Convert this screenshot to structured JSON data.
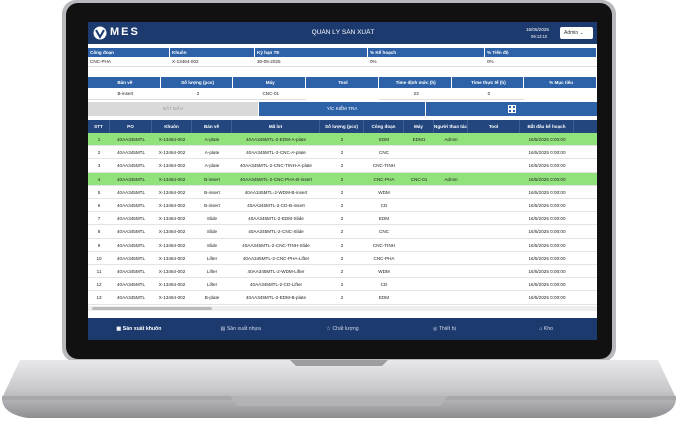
{
  "header": {
    "logo": "MES",
    "title": "QUẢN LÝ SẢN XUẤT",
    "date": "16/05/2025",
    "time": "09:13:10",
    "user": "Admin"
  },
  "info_1": {
    "headers": [
      "Công đoạn",
      "Khuôn",
      "Kỳ hạn TE",
      "% Kế hoạch",
      "% Tiến độ"
    ],
    "values": [
      "CNC-PHA",
      "X-13464-002",
      "30-05-2025",
      "0%",
      "0%"
    ]
  },
  "info_2": {
    "headers": [
      "Bản vẽ",
      "Số lượng (pcs)",
      "Máy",
      "Tool",
      "Time định mức (h)",
      "Time thực tế (h)",
      "% Mục tiêu"
    ],
    "values": [
      "B-insert",
      "2",
      "CNC-01",
      null,
      "23",
      "0",
      null
    ]
  },
  "buttons": [
    "BẮT ĐẦU",
    "Y/C KIỂM TRA"
  ],
  "table": {
    "columns": [
      "STT",
      "PO",
      "Khuôn",
      "Bản vẽ",
      "Mã lot",
      "Số lượng (pcs)",
      "Công đoạn",
      "Máy",
      "Người thao tác",
      "Tool",
      "Bắt đầu kế hoạch"
    ],
    "selected_rows": [
      0,
      3
    ],
    "rows": [
      [
        "1",
        "40AA345MTL",
        "X-13464-002",
        "A-plate",
        "40AA345MTL-2-EDM-A-plate",
        "2",
        "EDM",
        "EDM1",
        "Admin",
        null,
        "16/5/2025 0:00:00"
      ],
      [
        "2",
        "40AA345MTL",
        "X-13464-002",
        "A-plate",
        "40AA345MTL-2-CNC-A-plate",
        "2",
        "CNC",
        null,
        null,
        null,
        "16/5/2025 0:00:00"
      ],
      [
        "3",
        "40AA345MTL",
        "X-13464-002",
        "A-plate",
        "40AA345MTL-2-CNC-TINH-A-plate",
        "2",
        "CNC-TINH",
        null,
        null,
        null,
        "16/5/2025 0:00:00"
      ],
      [
        "4",
        "40AA345MTL",
        "X-13464-002",
        "B-insert",
        "40AA345MTL-2-CNC-PHA-B-insert",
        "2",
        "CNC-PHA",
        "CNC-01",
        "Admin",
        null,
        "16/5/2025 0:00:00"
      ],
      [
        "5",
        "40AA345MTL",
        "X-13464-002",
        "B-insert",
        "40AA345MTL-2-WDM-B-insert",
        "2",
        "WDM",
        null,
        null,
        null,
        "16/5/2025 0:00:00"
      ],
      [
        "6",
        "40AA345MTL",
        "X-13464-002",
        "B-insert",
        "40AA345MTL-2-CD-B-insert",
        "2",
        "CD",
        null,
        null,
        null,
        "16/5/2025 0:00:00"
      ],
      [
        "7",
        "40AA345MTL",
        "X-13464-002",
        "Slide",
        "40AA345MTL-2-EDM-Slide",
        "2",
        "EDM",
        null,
        null,
        null,
        "16/5/2025 0:00:00"
      ],
      [
        "8",
        "40AA345MTL",
        "X-13464-002",
        "Slide",
        "40AA345MTL-2-CNC-Slide",
        "2",
        "CNC",
        null,
        null,
        null,
        "16/5/2025 0:00:00"
      ],
      [
        "9",
        "40AA345MTL",
        "X-13464-002",
        "Slide",
        "40AA345MTL-2-CNC-TINH-Slide",
        "2",
        "CNC-TINH",
        null,
        null,
        null,
        "16/5/2025 0:00:00"
      ],
      [
        "10",
        "40AA345MTL",
        "X-13464-002",
        "Lifter",
        "40AA345MTL-2-CNC-PHA-Lifter",
        "2",
        "CNC-PHA",
        null,
        null,
        null,
        "16/5/2025 0:00:00"
      ],
      [
        "11",
        "40AA345MTL",
        "X-13464-002",
        "Lifter",
        "40AA345MTL-2-WDM-Lifter",
        "2",
        "WDM",
        null,
        null,
        null,
        "16/5/2025 0:00:00"
      ],
      [
        "12",
        "40AA345MTL",
        "X-13464-002",
        "Lifter",
        "40AA345MTL-2-CD-Lifter",
        "2",
        "CD",
        null,
        null,
        null,
        "16/5/2025 0:00:00"
      ],
      [
        "13",
        "40AA345MTL",
        "X-13464-002",
        "B-plate",
        "40AA345MTL-2-EDM-B-plate",
        "2",
        "EDM",
        null,
        null,
        null,
        "16/5/2025 0:00:00"
      ]
    ]
  },
  "nav": [
    "Sản xuất khuôn",
    "Sản xuất nhựa",
    "Chất lượng",
    "Thiết bị",
    "Kho"
  ]
}
